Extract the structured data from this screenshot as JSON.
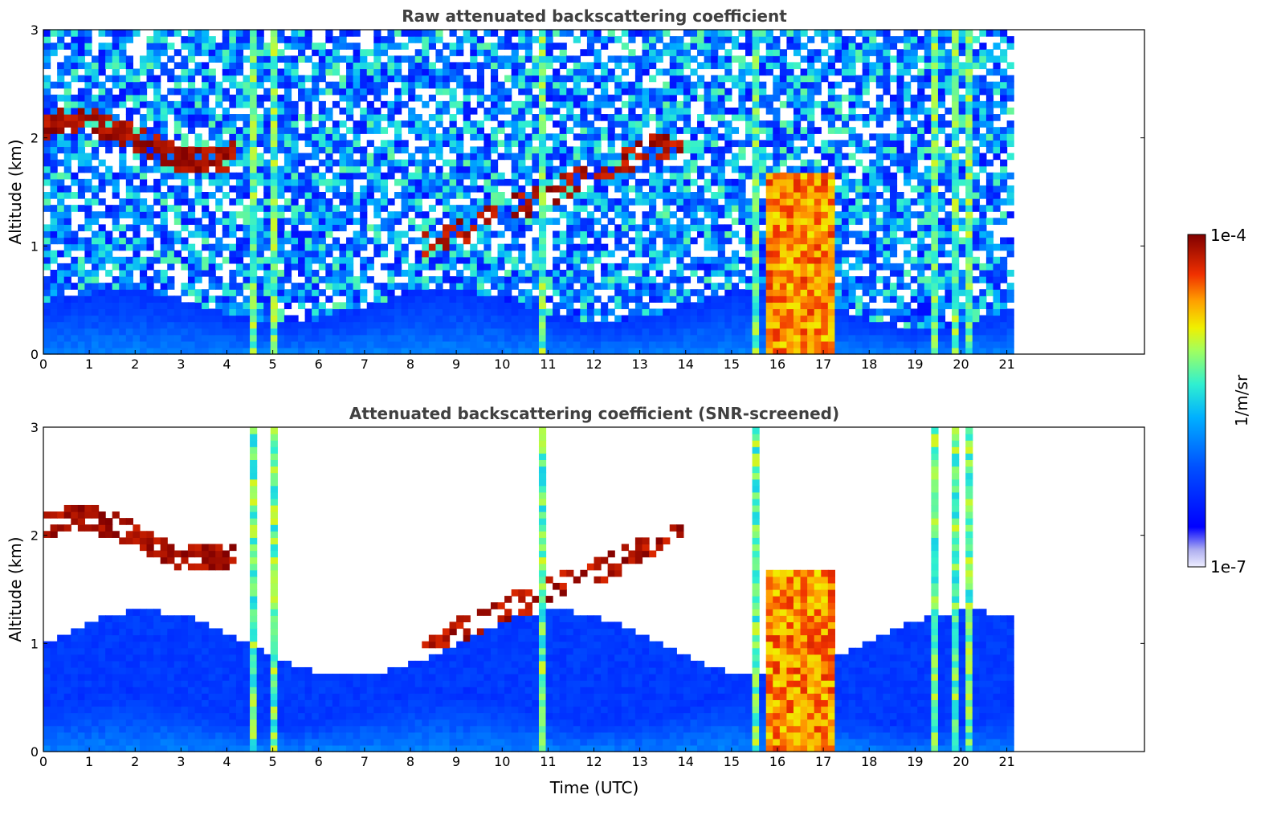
{
  "chart_data": [
    {
      "type": "heatmap",
      "title": "Raw attenuated backscattering coefficient",
      "xlabel": "",
      "ylabel": "Altitude (km)",
      "xlim": [
        0,
        24
      ],
      "ylim": [
        0,
        3
      ],
      "x_ticks": [
        0,
        1,
        2,
        3,
        4,
        5,
        6,
        7,
        8,
        9,
        10,
        11,
        12,
        13,
        14,
        15,
        16,
        17,
        18,
        19,
        20,
        21
      ],
      "y_ticks": [
        0,
        1,
        2,
        3
      ],
      "data_end_hour": 21.1,
      "features": {
        "dense_layers": [
          {
            "start_hour": 15.75,
            "end_hour": 17.2,
            "top_km": 1.7
          },
          {
            "start_hour": 4.5,
            "end_hour": 5.1,
            "top_km": 3.0
          },
          {
            "start_hour": 10.75,
            "end_hour": 11.0,
            "top_km": 3.0
          },
          {
            "start_hour": 19.35,
            "end_hour": 20.3,
            "top_km": 3.0
          }
        ],
        "aerosol_layer_top_km": 0.5
      }
    },
    {
      "type": "heatmap",
      "title": "Attenuated backscattering coefficient (SNR-screened)",
      "xlabel": "Time (UTC)",
      "ylabel": "Altitude (km)",
      "xlim": [
        0,
        24
      ],
      "ylim": [
        0,
        3
      ],
      "x_ticks": [
        0,
        1,
        2,
        3,
        4,
        5,
        6,
        7,
        8,
        9,
        10,
        11,
        12,
        13,
        14,
        15,
        16,
        17,
        18,
        19,
        20,
        21
      ],
      "y_ticks": [
        0,
        1,
        2,
        3
      ],
      "data_end_hour": 21.1
    }
  ],
  "colorbar": {
    "min_label": "1e-7",
    "max_label": "1e-4",
    "unit": "1/m/sr",
    "scale": "log",
    "colormap": [
      "#ffffff",
      "#d8d8f8",
      "#0000ff",
      "#0080ff",
      "#00c8ff",
      "#40ffc0",
      "#c0ff40",
      "#ffe000",
      "#ff8000",
      "#e81000",
      "#800000"
    ]
  }
}
